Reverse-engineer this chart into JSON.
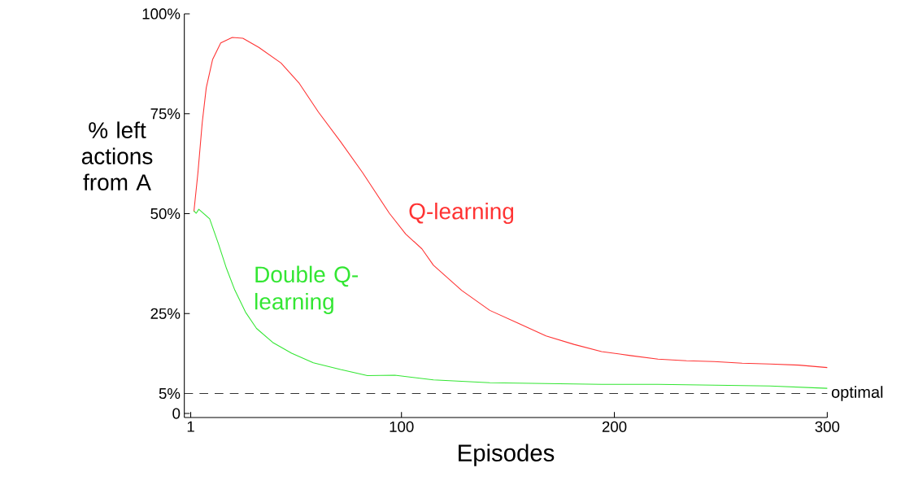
{
  "chart_data": {
    "type": "line",
    "xlabel": "Episodes",
    "ylabel": "% left actions from A",
    "xlim": [
      -2,
      300
    ],
    "ylim": [
      -1,
      100
    ],
    "xticks": [
      1,
      100,
      200,
      300
    ],
    "yticks": [
      0,
      {
        "value": 5,
        "label": "5%"
      },
      {
        "value": 25,
        "label": "25%"
      },
      {
        "value": 50,
        "label": "50%"
      },
      {
        "value": 75,
        "label": "75%"
      },
      {
        "value": 100,
        "label": "100%"
      }
    ],
    "series": [
      {
        "name": "Q-learning",
        "color": "#ff3333",
        "x": [
          2.5,
          4.4,
          6.4,
          8.3,
          11.3,
          15.1,
          20.5,
          25.5,
          33,
          43.4,
          52,
          61,
          71.4,
          81.7,
          94.3,
          102,
          109.6,
          115,
          128.3,
          141.5,
          154.7,
          167.9,
          181,
          194,
          207.5,
          220.5,
          233.9,
          246.9,
          260,
          273,
          286.7,
          300
        ],
        "values": [
          50.5,
          60.3,
          72.7,
          81.5,
          88.6,
          92.7,
          94.1,
          93.9,
          91.6,
          87.7,
          82.6,
          75.4,
          68,
          60.3,
          50.1,
          44.9,
          41.2,
          37.1,
          30.8,
          25.8,
          22.6,
          19.4,
          17.3,
          15.5,
          14.5,
          13.6,
          13.2,
          13.0,
          12.6,
          12.4,
          12.1,
          11.5
        ]
      },
      {
        "name": "Double Q-learning",
        "color": "#33e633",
        "x": [
          2.5,
          3.6,
          4.8,
          9.9,
          14,
          17.8,
          21.7,
          26.7,
          31.9,
          39.5,
          48.4,
          58.6,
          71.4,
          84,
          96.9,
          115,
          141.5,
          167.7,
          194,
          220.5,
          247,
          273,
          300
        ],
        "values": [
          50.7,
          50.1,
          51.1,
          48.7,
          42.5,
          36.3,
          30.9,
          25.4,
          21.3,
          17.8,
          15.1,
          12.7,
          11.0,
          9.5,
          9.6,
          8.4,
          7.7,
          7.5,
          7.3,
          7.3,
          7.1,
          6.9,
          6.3
        ]
      }
    ],
    "ref_lines": [
      {
        "axis": "y",
        "value": 5,
        "label": "optimal",
        "color": "#333333",
        "line_style": "dashed"
      }
    ]
  }
}
